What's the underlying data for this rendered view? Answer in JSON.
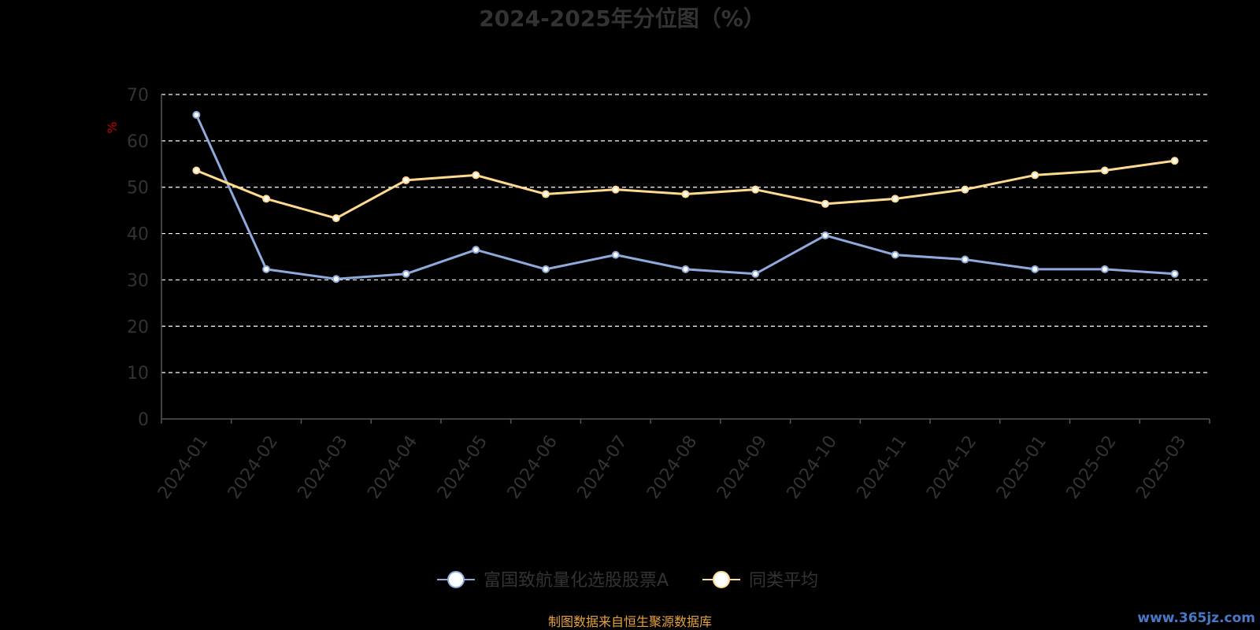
{
  "chart_data": {
    "type": "line",
    "title": "2024-2025年分位图（%）",
    "ylabel": "%",
    "xlabel": "",
    "ylim": [
      0,
      70
    ],
    "yticks": [
      0,
      10,
      20,
      30,
      40,
      50,
      60,
      70
    ],
    "grid": true,
    "legend_position": "bottom",
    "categories": [
      "2024-01",
      "2024-02",
      "2024-03",
      "2024-04",
      "2024-05",
      "2024-06",
      "2024-07",
      "2024-08",
      "2024-09",
      "2024-10",
      "2024-11",
      "2024-12",
      "2025-01",
      "2025-02",
      "2025-03"
    ],
    "series": [
      {
        "name": "富国致航量化选股股票A",
        "color": "#8ea9dc",
        "values": [
          65.6,
          32.3,
          30.2,
          31.3,
          36.5,
          32.3,
          35.4,
          32.3,
          31.3,
          39.6,
          35.4,
          34.4,
          32.3,
          32.3,
          31.3
        ]
      },
      {
        "name": "同类平均",
        "color": "#ffd98e",
        "values": [
          53.6,
          47.5,
          43.3,
          51.5,
          52.6,
          48.5,
          49.5,
          48.5,
          49.5,
          46.4,
          47.5,
          49.5,
          52.6,
          53.6,
          55.7
        ]
      }
    ]
  },
  "footer": {
    "source": "制图数据来自恒生聚源数据库",
    "watermark": "www.365jz.com"
  },
  "colors": {
    "background": "#000000",
    "title": "#333333",
    "axis": "#555555",
    "grid": "#ffffff",
    "ylabel": "#cc0000",
    "source": "#e6a23c",
    "watermark": "#4a78c8"
  }
}
